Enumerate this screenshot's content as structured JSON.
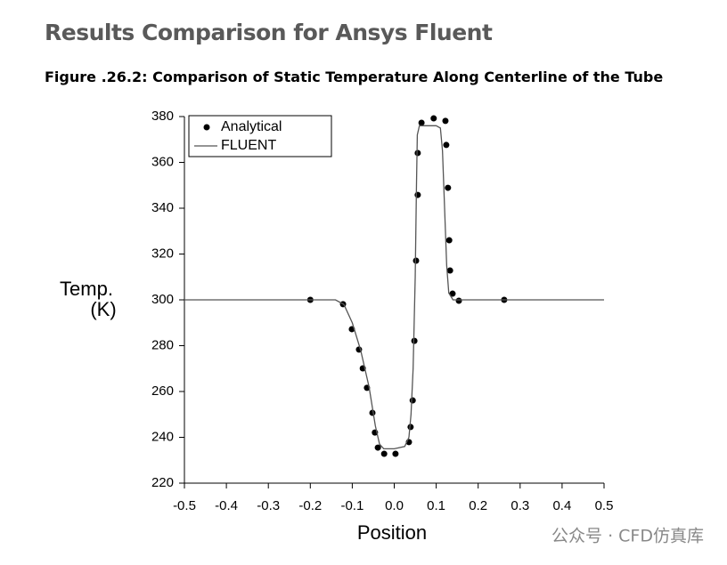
{
  "header": {
    "title": "Results Comparison for Ansys Fluent"
  },
  "figure": {
    "caption": "Figure .26.2: Comparison of Static Temperature Along Centerline of the Tube"
  },
  "chart_data": {
    "type": "scatter",
    "xlabel": "Position",
    "ylabel_lines": [
      "Temp.",
      "(K)"
    ],
    "xlim": [
      -0.5,
      0.5
    ],
    "ylim": [
      220,
      380
    ],
    "xticks": [
      -0.5,
      -0.4,
      -0.3,
      -0.2,
      -0.1,
      {
        "value": 0,
        "label": "0.0"
      },
      0.1,
      0.2,
      0.3,
      0.4,
      0.5
    ],
    "yticks": [
      220,
      240,
      260,
      280,
      300,
      320,
      340,
      360,
      380
    ],
    "legend": "top-left",
    "series": [
      {
        "name": "Analytical",
        "type": "scatter",
        "color": "#000000",
        "x": [
          -0.2,
          -0.122,
          -0.101,
          -0.084,
          -0.075,
          -0.065,
          -0.052,
          -0.046,
          -0.039,
          -0.024,
          0.003,
          0.035,
          0.039,
          0.044,
          0.048,
          0.052,
          0.056,
          0.056,
          0.065,
          0.094,
          0.122,
          0.124,
          0.128,
          0.131,
          0.133,
          0.139,
          0.154,
          0.262
        ],
        "values": [
          300,
          298.1,
          287.2,
          278.3,
          270.1,
          261.6,
          250.7,
          242.1,
          235.5,
          232.8,
          232.8,
          237.9,
          244.5,
          256.1,
          282.1,
          317.1,
          345.8,
          364.1,
          377.3,
          379.2,
          378.1,
          367.6,
          348.9,
          326,
          312.8,
          302.7,
          299.6,
          300
        ]
      },
      {
        "name": "FLUENT",
        "type": "line",
        "color": "#555555",
        "x": [
          -0.5,
          -0.14,
          -0.12,
          -0.1,
          -0.08,
          -0.06,
          -0.045,
          -0.035,
          -0.025,
          0,
          0.025,
          0.035,
          0.04,
          0.045,
          0.05,
          0.053,
          0.055,
          0.06,
          0.07,
          0.1,
          0.11,
          0.115,
          0.12,
          0.125,
          0.13,
          0.14,
          0.5
        ],
        "values": [
          300,
          300,
          298,
          290,
          278,
          262,
          245,
          237,
          235,
          235,
          236,
          240,
          250,
          270,
          310,
          350,
          372,
          376,
          376,
          376,
          375,
          365,
          340,
          315,
          303,
          300,
          300
        ]
      }
    ]
  },
  "watermark": "公众号 · CFD仿真库"
}
